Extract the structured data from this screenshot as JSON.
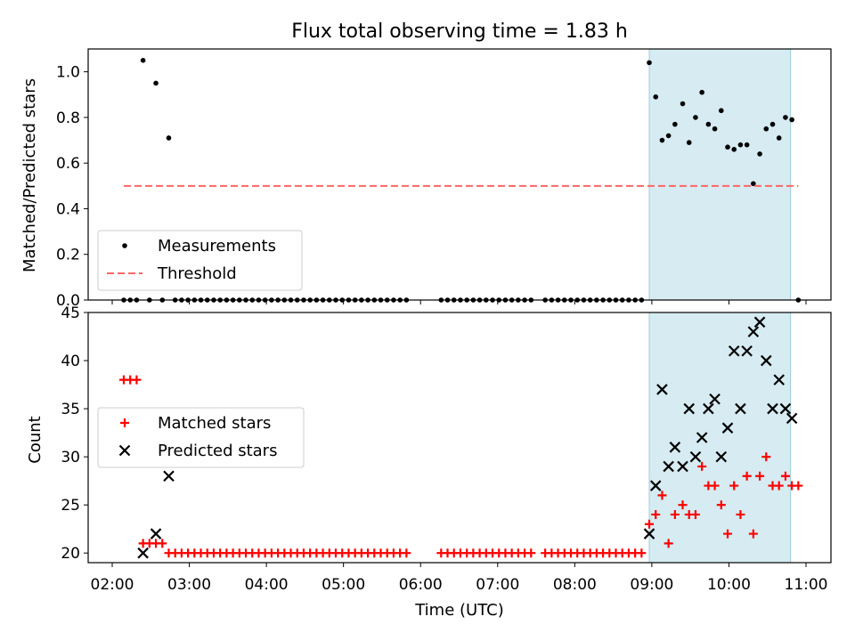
{
  "chart_data": [
    {
      "type": "scatter",
      "title": "Flux total observing time = 1.83 h",
      "xlabel": "",
      "ylabel": "Matched/Predicted stars",
      "ylim": [
        0,
        1.1
      ],
      "yticks": [
        "0.0",
        "0.2",
        "0.4",
        "0.6",
        "0.8",
        "1.0"
      ],
      "shaded_span": [
        "08:58",
        "10:48"
      ],
      "legend_position": "lower-left",
      "series": [
        {
          "name": "Measurements",
          "marker": "dot",
          "color": "#000000",
          "points": [
            [
              "02:09",
              0
            ],
            [
              "02:14",
              0
            ],
            [
              "02:19",
              0
            ],
            [
              "02:24",
              1.05
            ],
            [
              "02:29",
              0
            ],
            [
              "02:34",
              0.95
            ],
            [
              "02:39",
              0
            ],
            [
              "02:44",
              0.71
            ],
            [
              "02:49",
              0
            ],
            [
              "02:54",
              0
            ],
            [
              "02:59",
              0
            ],
            [
              "03:04",
              0
            ],
            [
              "03:09",
              0
            ],
            [
              "03:14",
              0
            ],
            [
              "03:19",
              0
            ],
            [
              "03:24",
              0
            ],
            [
              "03:29",
              0
            ],
            [
              "03:34",
              0
            ],
            [
              "03:39",
              0
            ],
            [
              "03:44",
              0
            ],
            [
              "03:49",
              0
            ],
            [
              "03:54",
              0
            ],
            [
              "03:59",
              0
            ],
            [
              "04:04",
              0
            ],
            [
              "04:09",
              0
            ],
            [
              "04:14",
              0
            ],
            [
              "04:19",
              0
            ],
            [
              "04:24",
              0
            ],
            [
              "04:29",
              0
            ],
            [
              "04:34",
              0
            ],
            [
              "04:39",
              0
            ],
            [
              "04:44",
              0
            ],
            [
              "04:49",
              0
            ],
            [
              "04:54",
              0
            ],
            [
              "04:59",
              0
            ],
            [
              "05:04",
              0
            ],
            [
              "05:09",
              0
            ],
            [
              "05:14",
              0
            ],
            [
              "05:19",
              0
            ],
            [
              "05:24",
              0
            ],
            [
              "05:29",
              0
            ],
            [
              "05:34",
              0
            ],
            [
              "05:39",
              0
            ],
            [
              "05:44",
              0
            ],
            [
              "05:49",
              0
            ],
            [
              "06:16",
              0
            ],
            [
              "06:21",
              0
            ],
            [
              "06:26",
              0
            ],
            [
              "06:31",
              0
            ],
            [
              "06:36",
              0
            ],
            [
              "06:41",
              0
            ],
            [
              "06:46",
              0
            ],
            [
              "06:51",
              0
            ],
            [
              "06:56",
              0
            ],
            [
              "07:01",
              0
            ],
            [
              "07:06",
              0
            ],
            [
              "07:11",
              0
            ],
            [
              "07:16",
              0
            ],
            [
              "07:21",
              0
            ],
            [
              "07:26",
              0
            ],
            [
              "07:37",
              0
            ],
            [
              "07:42",
              0
            ],
            [
              "07:47",
              0
            ],
            [
              "07:52",
              0
            ],
            [
              "07:57",
              0
            ],
            [
              "08:02",
              0
            ],
            [
              "08:07",
              0
            ],
            [
              "08:12",
              0
            ],
            [
              "08:17",
              0
            ],
            [
              "08:22",
              0
            ],
            [
              "08:27",
              0
            ],
            [
              "08:32",
              0
            ],
            [
              "08:37",
              0
            ],
            [
              "08:42",
              0
            ],
            [
              "08:47",
              0
            ],
            [
              "08:52",
              0
            ],
            [
              "08:58",
              1.04
            ],
            [
              "09:03",
              0.89
            ],
            [
              "09:08",
              0.7
            ],
            [
              "09:13",
              0.72
            ],
            [
              "09:18",
              0.77
            ],
            [
              "09:24",
              0.86
            ],
            [
              "09:29",
              0.69
            ],
            [
              "09:34",
              0.8
            ],
            [
              "09:39",
              0.91
            ],
            [
              "09:44",
              0.77
            ],
            [
              "09:49",
              0.75
            ],
            [
              "09:54",
              0.83
            ],
            [
              "09:59",
              0.67
            ],
            [
              "10:04",
              0.66
            ],
            [
              "10:09",
              0.68
            ],
            [
              "10:14",
              0.68
            ],
            [
              "10:19",
              0.51
            ],
            [
              "10:24",
              0.64
            ],
            [
              "10:29",
              0.75
            ],
            [
              "10:34",
              0.77
            ],
            [
              "10:39",
              0.71
            ],
            [
              "10:44",
              0.8
            ],
            [
              "10:49",
              0.79
            ],
            [
              "10:54",
              0
            ]
          ]
        },
        {
          "name": "Threshold",
          "marker": "dashed-line",
          "color": "#ff6666",
          "points": [
            [
              "02:09",
              0.5
            ],
            [
              "10:54",
              0.5
            ]
          ]
        }
      ]
    },
    {
      "type": "scatter",
      "title": "",
      "xlabel": "Time (UTC)",
      "ylabel": "Count",
      "ylim": [
        19,
        45
      ],
      "yticks": [
        "20",
        "25",
        "30",
        "35",
        "40",
        "45"
      ],
      "xticks": [
        "02:00",
        "03:00",
        "04:00",
        "05:00",
        "06:00",
        "07:00",
        "08:00",
        "09:00",
        "10:00",
        "11:00"
      ],
      "shaded_span": [
        "08:58",
        "10:48"
      ],
      "legend_position": "center-left",
      "series": [
        {
          "name": "Matched stars",
          "marker": "plus",
          "color": "#ff0000",
          "points": [
            [
              "02:09",
              38
            ],
            [
              "02:14",
              38
            ],
            [
              "02:19",
              38
            ],
            [
              "02:24",
              21
            ],
            [
              "02:29",
              21
            ],
            [
              "02:34",
              21
            ],
            [
              "02:39",
              21
            ],
            [
              "02:44",
              20
            ],
            [
              "02:49",
              20
            ],
            [
              "02:54",
              20
            ],
            [
              "02:59",
              20
            ],
            [
              "03:04",
              20
            ],
            [
              "03:09",
              20
            ],
            [
              "03:14",
              20
            ],
            [
              "03:19",
              20
            ],
            [
              "03:24",
              20
            ],
            [
              "03:29",
              20
            ],
            [
              "03:34",
              20
            ],
            [
              "03:39",
              20
            ],
            [
              "03:44",
              20
            ],
            [
              "03:49",
              20
            ],
            [
              "03:54",
              20
            ],
            [
              "03:59",
              20
            ],
            [
              "04:04",
              20
            ],
            [
              "04:09",
              20
            ],
            [
              "04:14",
              20
            ],
            [
              "04:19",
              20
            ],
            [
              "04:24",
              20
            ],
            [
              "04:29",
              20
            ],
            [
              "04:34",
              20
            ],
            [
              "04:39",
              20
            ],
            [
              "04:44",
              20
            ],
            [
              "04:49",
              20
            ],
            [
              "04:54",
              20
            ],
            [
              "04:59",
              20
            ],
            [
              "05:04",
              20
            ],
            [
              "05:09",
              20
            ],
            [
              "05:14",
              20
            ],
            [
              "05:19",
              20
            ],
            [
              "05:24",
              20
            ],
            [
              "05:29",
              20
            ],
            [
              "05:34",
              20
            ],
            [
              "05:39",
              20
            ],
            [
              "05:44",
              20
            ],
            [
              "05:49",
              20
            ],
            [
              "06:16",
              20
            ],
            [
              "06:21",
              20
            ],
            [
              "06:26",
              20
            ],
            [
              "06:31",
              20
            ],
            [
              "06:36",
              20
            ],
            [
              "06:41",
              20
            ],
            [
              "06:46",
              20
            ],
            [
              "06:51",
              20
            ],
            [
              "06:56",
              20
            ],
            [
              "07:01",
              20
            ],
            [
              "07:06",
              20
            ],
            [
              "07:11",
              20
            ],
            [
              "07:16",
              20
            ],
            [
              "07:21",
              20
            ],
            [
              "07:26",
              20
            ],
            [
              "07:37",
              20
            ],
            [
              "07:42",
              20
            ],
            [
              "07:47",
              20
            ],
            [
              "07:52",
              20
            ],
            [
              "07:57",
              20
            ],
            [
              "08:02",
              20
            ],
            [
              "08:07",
              20
            ],
            [
              "08:12",
              20
            ],
            [
              "08:17",
              20
            ],
            [
              "08:22",
              20
            ],
            [
              "08:27",
              20
            ],
            [
              "08:32",
              20
            ],
            [
              "08:37",
              20
            ],
            [
              "08:42",
              20
            ],
            [
              "08:47",
              20
            ],
            [
              "08:52",
              20
            ],
            [
              "08:58",
              23
            ],
            [
              "09:03",
              24
            ],
            [
              "09:08",
              26
            ],
            [
              "09:13",
              21
            ],
            [
              "09:18",
              24
            ],
            [
              "09:24",
              25
            ],
            [
              "09:29",
              24
            ],
            [
              "09:34",
              24
            ],
            [
              "09:39",
              29
            ],
            [
              "09:44",
              27
            ],
            [
              "09:49",
              27
            ],
            [
              "09:54",
              25
            ],
            [
              "09:59",
              22
            ],
            [
              "10:04",
              27
            ],
            [
              "10:09",
              24
            ],
            [
              "10:14",
              28
            ],
            [
              "10:19",
              22
            ],
            [
              "10:24",
              28
            ],
            [
              "10:29",
              30
            ],
            [
              "10:34",
              27
            ],
            [
              "10:39",
              27
            ],
            [
              "10:44",
              28
            ],
            [
              "10:49",
              27
            ],
            [
              "10:54",
              27
            ]
          ]
        },
        {
          "name": "Predicted stars",
          "marker": "x",
          "color": "#000000",
          "points": [
            [
              "02:24",
              20
            ],
            [
              "02:34",
              22
            ],
            [
              "02:44",
              28
            ],
            [
              "08:58",
              22
            ],
            [
              "09:03",
              27
            ],
            [
              "09:08",
              37
            ],
            [
              "09:13",
              29
            ],
            [
              "09:18",
              31
            ],
            [
              "09:24",
              29
            ],
            [
              "09:29",
              35
            ],
            [
              "09:34",
              30
            ],
            [
              "09:39",
              32
            ],
            [
              "09:44",
              35
            ],
            [
              "09:49",
              36
            ],
            [
              "09:54",
              30
            ],
            [
              "09:59",
              33
            ],
            [
              "10:04",
              41
            ],
            [
              "10:09",
              35
            ],
            [
              "10:14",
              41
            ],
            [
              "10:19",
              43
            ],
            [
              "10:24",
              44
            ],
            [
              "10:29",
              40
            ],
            [
              "10:34",
              35
            ],
            [
              "10:39",
              38
            ],
            [
              "10:44",
              35
            ],
            [
              "10:49",
              34
            ]
          ]
        }
      ]
    }
  ]
}
